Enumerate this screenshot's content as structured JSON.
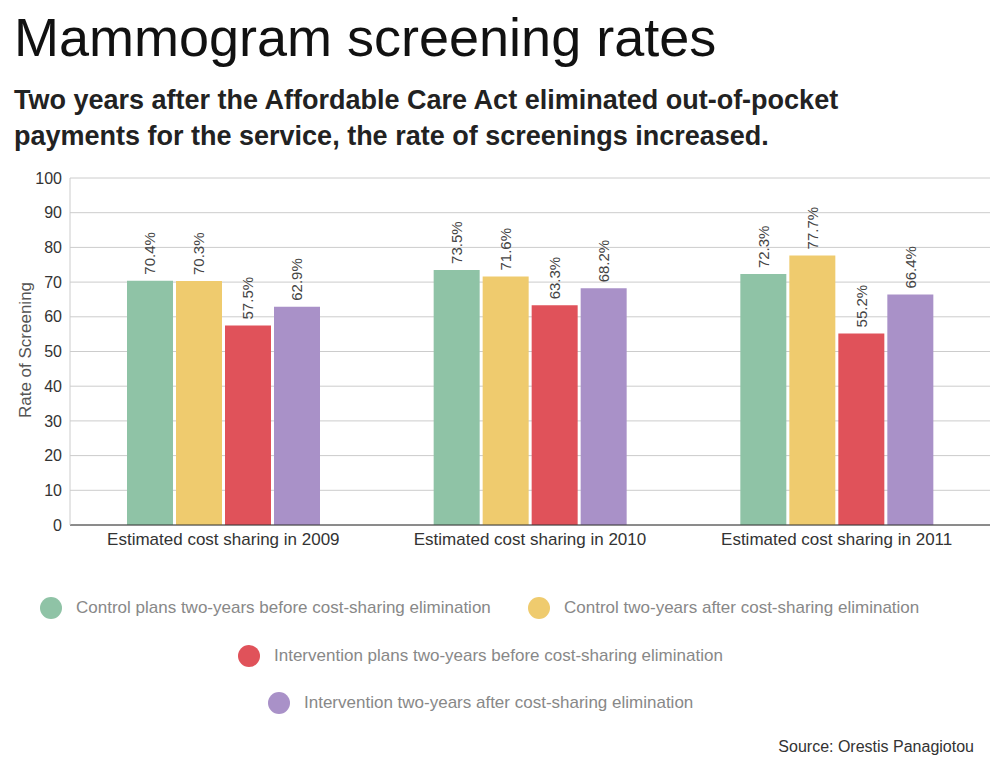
{
  "chart_data": {
    "type": "bar",
    "title": "Mammogram screening rates",
    "subtitle": "Two years after the Affordable Care Act eliminated out-of-pocket payments for the service, the rate of screenings increased.",
    "y_label": "Rate of Screening",
    "source": "Source: Orestis Panagiotou",
    "categories": [
      "Estimated cost sharing in 2009",
      "Estimated cost sharing in 2010",
      "Estimated cost sharing in 2011"
    ],
    "series": [
      {
        "name": "Control plans two-years before cost-sharing elimination",
        "color": "#8fc3a6",
        "values": [
          70.4,
          73.5,
          72.3
        ],
        "value_labels": [
          "70.4%",
          "73.5%",
          "72.3%"
        ]
      },
      {
        "name": "Control two-years after cost-sharing elimination",
        "color": "#efcb6e",
        "values": [
          70.3,
          71.6,
          77.7
        ],
        "value_labels": [
          "70.3%",
          "71.6%",
          "77.7%"
        ]
      },
      {
        "name": "Intervention plans two-years before cost-sharing elimination",
        "color": "#e0525a",
        "values": [
          57.5,
          63.3,
          55.2
        ],
        "value_labels": [
          "57.5%",
          "63.3%",
          "55.2%"
        ]
      },
      {
        "name": "Intervention two-years after cost-sharing elimination",
        "color": "#a991c8",
        "values": [
          62.9,
          68.2,
          66.4
        ],
        "value_labels": [
          "62.9%",
          "68.2%",
          "66.4%"
        ]
      }
    ],
    "ylim": [
      0,
      100
    ],
    "yticks": [
      0,
      10,
      20,
      30,
      40,
      50,
      60,
      70,
      80,
      90,
      100
    ],
    "grid": true,
    "data_labels": true,
    "legend": "bottom"
  }
}
